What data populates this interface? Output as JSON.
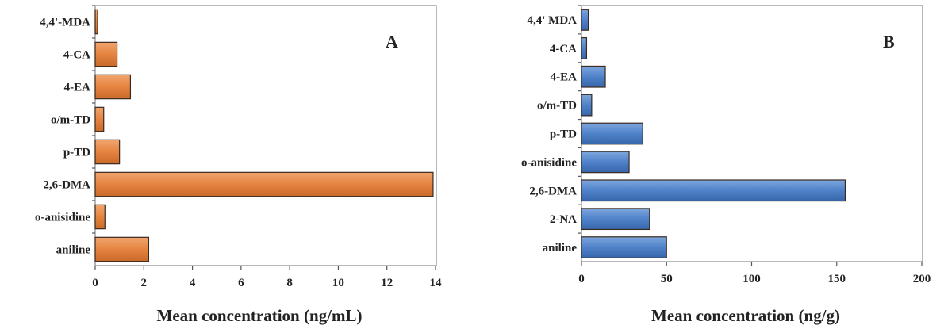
{
  "chart_data": [
    {
      "type": "bar",
      "orientation": "horizontal",
      "panel_label": "A",
      "xlabel": "Mean concentration (ng/mL)",
      "ylabel": "",
      "xlim": [
        0,
        14
      ],
      "xticks": [
        "0",
        "2",
        "4",
        "6",
        "8",
        "10",
        "12",
        "14"
      ],
      "categories": [
        "4,4'-MDA",
        "4-CA",
        "4-EA",
        "o/m-TD",
        "p-TD",
        "2,6-DMA",
        "o-anisidine",
        "aniline"
      ],
      "values": [
        0.1,
        0.9,
        1.45,
        0.35,
        1.0,
        13.9,
        0.4,
        2.2
      ],
      "color": "#e0803f",
      "grid": false
    },
    {
      "type": "bar",
      "orientation": "horizontal",
      "panel_label": "B",
      "xlabel": "Mean concentration (ng/g)",
      "ylabel": "",
      "xlim": [
        0,
        200
      ],
      "xticks": [
        "0",
        "50",
        "100",
        "150",
        "200"
      ],
      "categories": [
        "4,4' MDA",
        "4-CA",
        "4-EA",
        "o/m-TD",
        "p-TD",
        "o-anisidine",
        "2,6-DMA",
        "2-NA",
        "aniline"
      ],
      "values": [
        4,
        3,
        14,
        6,
        36,
        28,
        155,
        40,
        50
      ],
      "color": "#4f82c9",
      "grid": false
    }
  ]
}
